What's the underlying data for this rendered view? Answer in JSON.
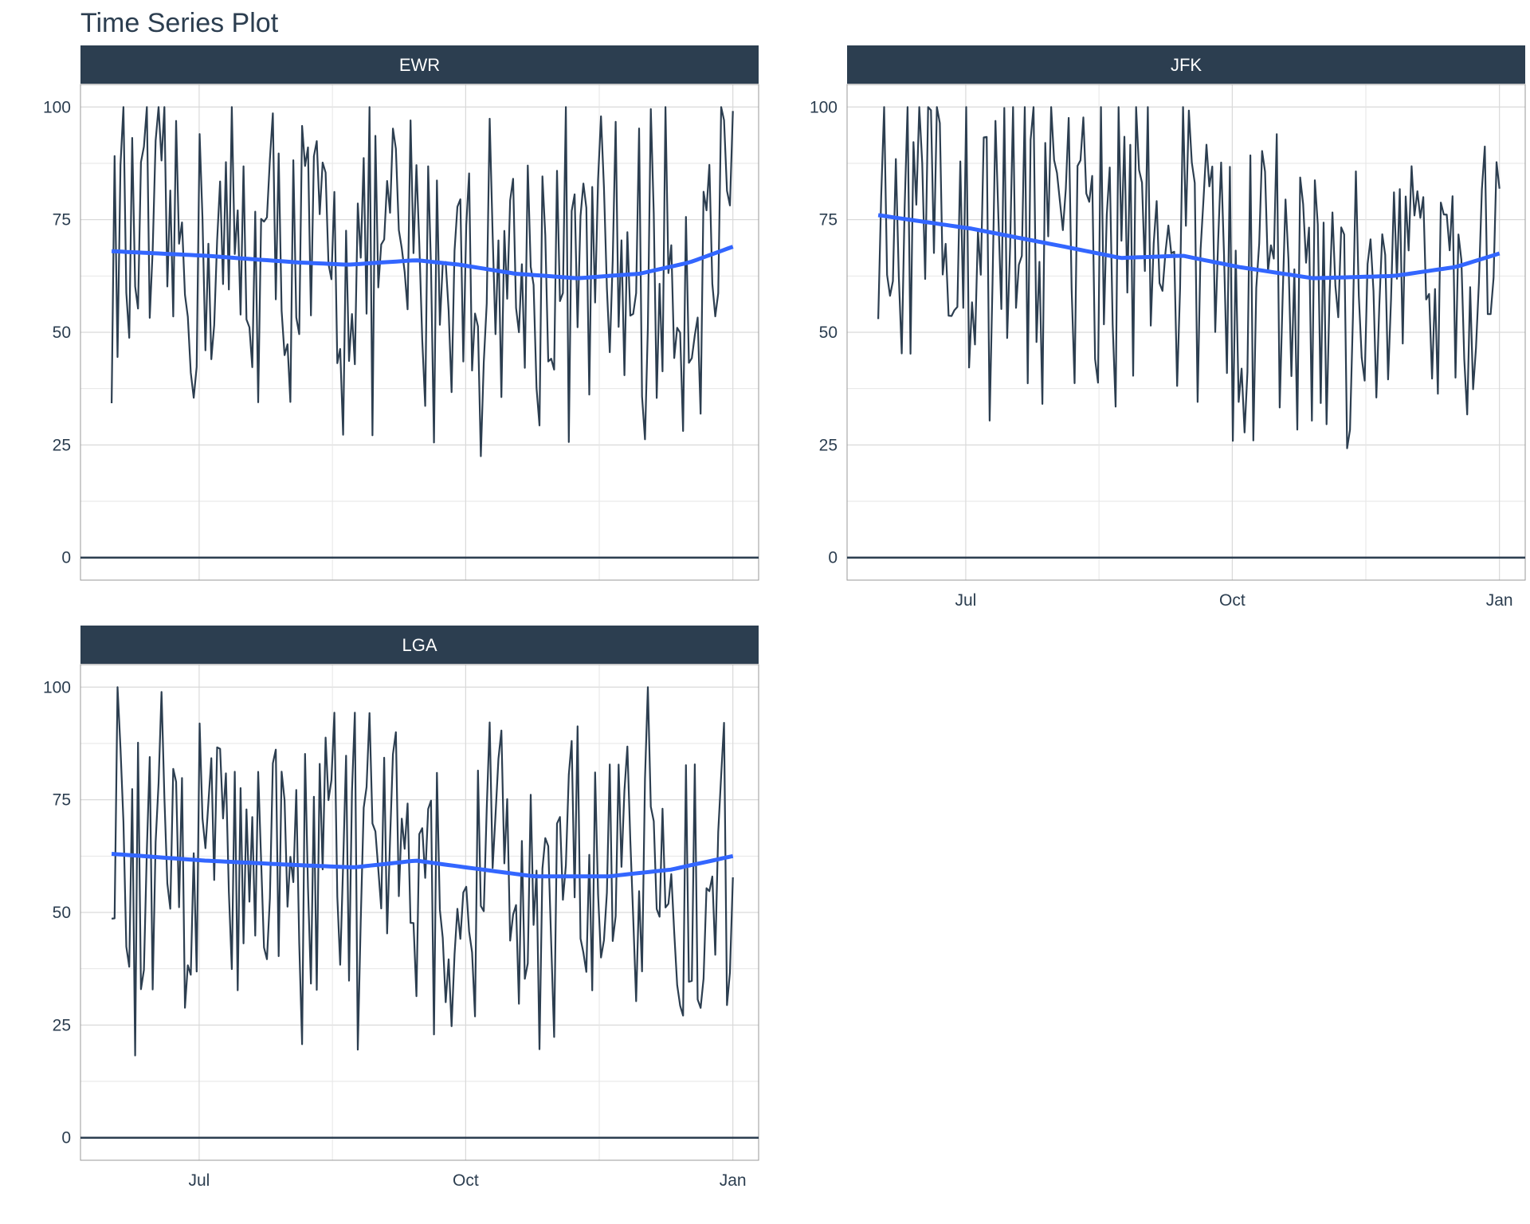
{
  "chart_data": {
    "type": "line",
    "title": "Time Series Plot",
    "xlabel": "",
    "ylabel": "",
    "ylim": [
      -5,
      105
    ],
    "y_ticks": [
      0,
      25,
      50,
      75,
      100
    ],
    "x_ticks": [
      "Jul",
      "Oct",
      "Jan"
    ],
    "grid": true,
    "reference_line_y": 0,
    "colors": {
      "series": "#2c3e50",
      "smooth": "#3366ff",
      "strip": "#2c3e50",
      "grid": "#d9d9d9"
    },
    "panels": [
      {
        "name": "EWR",
        "approx_range": [
          16,
          100
        ],
        "trend_points": [
          [
            0,
            68
          ],
          [
            0.15,
            67
          ],
          [
            0.3,
            65.5
          ],
          [
            0.38,
            65
          ],
          [
            0.49,
            66
          ],
          [
            0.56,
            65
          ],
          [
            0.65,
            63
          ],
          [
            0.75,
            62
          ],
          [
            0.85,
            63
          ],
          [
            0.93,
            65.5
          ],
          [
            1,
            69
          ]
        ]
      },
      {
        "name": "JFK",
        "approx_range": [
          17,
          100
        ],
        "trend_points": [
          [
            0,
            76
          ],
          [
            0.15,
            73
          ],
          [
            0.3,
            69
          ],
          [
            0.39,
            66.5
          ],
          [
            0.49,
            67
          ],
          [
            0.58,
            64.5
          ],
          [
            0.7,
            62
          ],
          [
            0.83,
            62.5
          ],
          [
            0.93,
            64.5
          ],
          [
            1,
            67.5
          ]
        ]
      },
      {
        "name": "LGA",
        "approx_range": [
          17,
          100
        ],
        "trend_points": [
          [
            0,
            63
          ],
          [
            0.15,
            61.5
          ],
          [
            0.3,
            60.5
          ],
          [
            0.39,
            60
          ],
          [
            0.49,
            61.5
          ],
          [
            0.57,
            60
          ],
          [
            0.68,
            58
          ],
          [
            0.8,
            58
          ],
          [
            0.9,
            59.5
          ],
          [
            1,
            62.5
          ]
        ]
      }
    ]
  }
}
